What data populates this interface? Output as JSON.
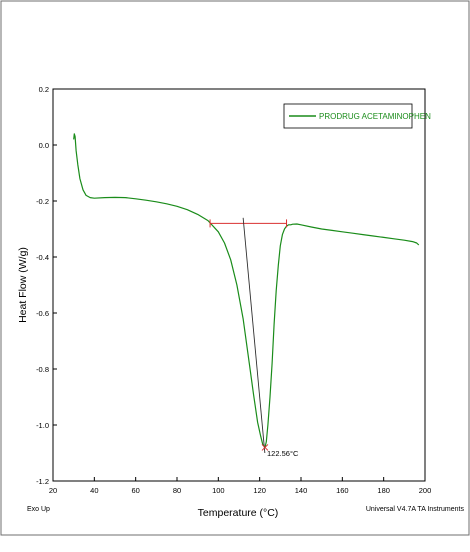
{
  "chart_data": {
    "type": "line",
    "title": "",
    "xlabel": "Temperature (°C)",
    "ylabel": "Heat Flow (W/g)",
    "xlim": [
      20,
      200
    ],
    "ylim": [
      -1.2,
      0.2
    ],
    "x_ticks": [
      20,
      40,
      60,
      80,
      100,
      120,
      140,
      160,
      180,
      200
    ],
    "y_ticks": [
      0.2,
      0.0,
      -0.2,
      -0.4,
      -0.6,
      -0.8,
      -1.0,
      -1.2
    ],
    "x_tick_labels": [
      "20",
      "40",
      "60",
      "80",
      "100",
      "120",
      "140",
      "160",
      "180",
      "200"
    ],
    "y_tick_labels": [
      "0.2",
      "0.0",
      "-0.2",
      "-0.4",
      "-0.6",
      "-0.8",
      "-1.0",
      "-1.2"
    ],
    "grid": false,
    "legend_position": "top-right",
    "series": [
      {
        "name": "PRODRUG ACETAMINOPHEN",
        "color": "#1a8c1a",
        "points": [
          [
            30.0,
            0.02
          ],
          [
            30.3,
            0.04
          ],
          [
            30.7,
            0.03
          ],
          [
            31.2,
            -0.02
          ],
          [
            32,
            -0.07
          ],
          [
            33,
            -0.12
          ],
          [
            34.5,
            -0.16
          ],
          [
            36,
            -0.18
          ],
          [
            38,
            -0.188
          ],
          [
            40,
            -0.19
          ],
          [
            45,
            -0.188
          ],
          [
            50,
            -0.187
          ],
          [
            55,
            -0.188
          ],
          [
            60,
            -0.192
          ],
          [
            65,
            -0.197
          ],
          [
            70,
            -0.203
          ],
          [
            75,
            -0.21
          ],
          [
            80,
            -0.219
          ],
          [
            85,
            -0.231
          ],
          [
            90,
            -0.248
          ],
          [
            95,
            -0.27
          ],
          [
            100,
            -0.31
          ],
          [
            103,
            -0.35
          ],
          [
            106,
            -0.41
          ],
          [
            109,
            -0.5
          ],
          [
            112,
            -0.62
          ],
          [
            115,
            -0.78
          ],
          [
            117,
            -0.89
          ],
          [
            119,
            -0.99
          ],
          [
            120.5,
            -1.04
          ],
          [
            121.5,
            -1.07
          ],
          [
            122.56,
            -1.08
          ],
          [
            123.2,
            -1.06
          ],
          [
            124,
            -1.0
          ],
          [
            125,
            -0.9
          ],
          [
            126,
            -0.78
          ],
          [
            127,
            -0.64
          ],
          [
            128,
            -0.52
          ],
          [
            129,
            -0.43
          ],
          [
            130,
            -0.36
          ],
          [
            131,
            -0.32
          ],
          [
            132,
            -0.3
          ],
          [
            133,
            -0.29
          ],
          [
            134,
            -0.285
          ],
          [
            135,
            -0.285
          ],
          [
            136,
            -0.283
          ],
          [
            138,
            -0.282
          ],
          [
            140,
            -0.285
          ],
          [
            145,
            -0.293
          ],
          [
            150,
            -0.3
          ],
          [
            155,
            -0.305
          ],
          [
            160,
            -0.31
          ],
          [
            165,
            -0.315
          ],
          [
            170,
            -0.32
          ],
          [
            175,
            -0.325
          ],
          [
            180,
            -0.33
          ],
          [
            185,
            -0.335
          ],
          [
            190,
            -0.34
          ],
          [
            194,
            -0.345
          ],
          [
            196,
            -0.35
          ],
          [
            197,
            -0.357
          ]
        ]
      }
    ],
    "annotations": {
      "peak_label": "122.56°C",
      "peak": [
        122.56,
        -1.08
      ],
      "baseline": [
        [
          96,
          -0.28
        ],
        [
          133,
          -0.28
        ]
      ],
      "onset_tangent": [
        [
          112,
          -0.26
        ],
        [
          122.5,
          -1.1
        ]
      ]
    },
    "colors": {
      "series": "#1a8c1a",
      "baseline": "#d93030",
      "tangent": "#303030",
      "axis": "#000000"
    }
  },
  "footer": {
    "left_text": "Exo Up",
    "right_text": "Universal V4.7A TA Instruments"
  }
}
